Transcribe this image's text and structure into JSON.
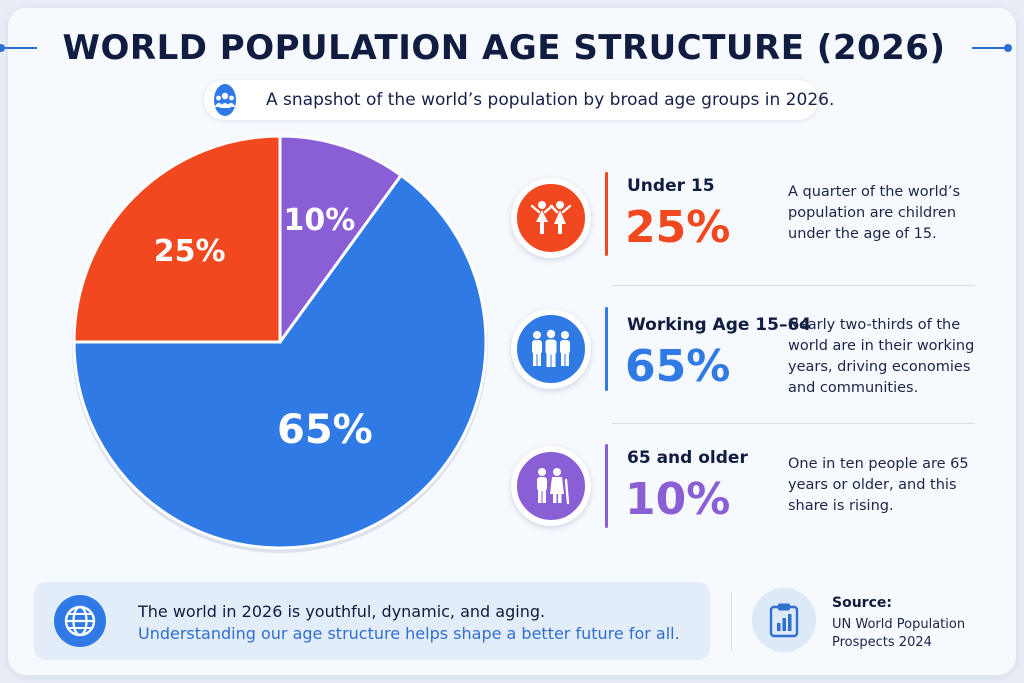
{
  "header": {
    "title": "WORLD POPULATION AGE STRUCTURE (2026)",
    "subtitle": "A snapshot of the world’s population by broad age groups in 2026.",
    "subtitle_icon": "people-group-icon"
  },
  "chart_data": {
    "type": "pie",
    "title": "WORLD POPULATION AGE STRUCTURE (2026)",
    "slices": [
      {
        "label": "Under 15",
        "value": 25,
        "display": "25%",
        "color": "#f2481f"
      },
      {
        "label": "Working Age 15–64",
        "value": 65,
        "display": "65%",
        "color": "#2f7ae5"
      },
      {
        "label": "65 and older",
        "value": 10,
        "display": "10%",
        "color": "#8a5fd6"
      }
    ]
  },
  "groups": [
    {
      "label": "Under 15",
      "pct": "25%",
      "desc": "A quarter of the world’s population are children under the age of 15.",
      "color": "#f2481f",
      "icon": "children-icon"
    },
    {
      "label": "Working Age 15–64",
      "pct": "65%",
      "desc": "Nearly two-thirds of the world are in their working years, driving economies and communities.",
      "color": "#2f7ae5",
      "icon": "adults-icon"
    },
    {
      "label": "65 and older",
      "pct": "10%",
      "desc": "One in ten people are 65 years or older, and this share is rising.",
      "color": "#8a5fd6",
      "icon": "elderly-icon"
    }
  ],
  "footer": {
    "line1": "The world in 2026 is youthful, dynamic, and aging.",
    "line2": "Understanding our age structure helps shape a better future for all.",
    "source_label": "Source:",
    "source_text": "UN World Population Prospects 2024",
    "globe_icon": "globe-icon",
    "source_icon": "clipboard-chart-icon"
  }
}
